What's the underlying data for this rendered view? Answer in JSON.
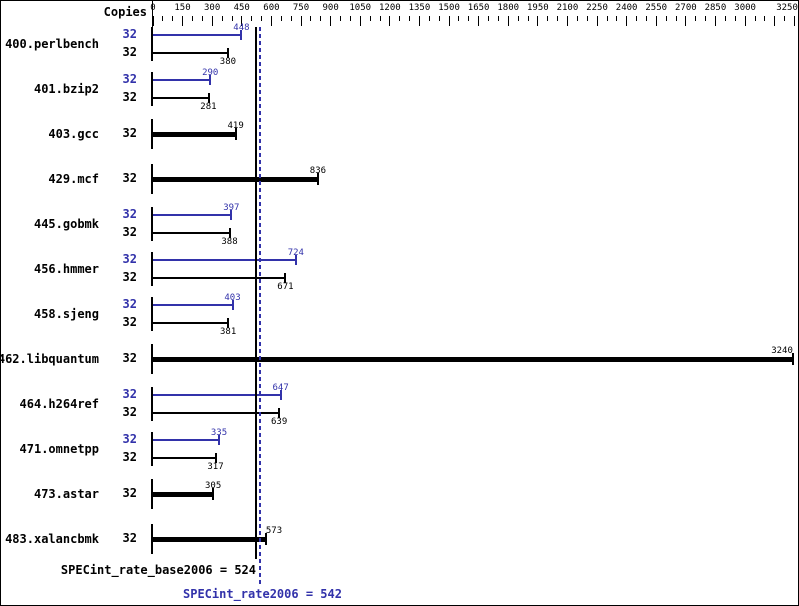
{
  "header": {
    "copies_label": "Copies"
  },
  "summary": {
    "base_text": "SPECint_rate_base2006 = 524",
    "peak_text": "SPECint_rate2006 = 542"
  },
  "colors": {
    "peak_blue": "#3232aa",
    "base_black": "#000000",
    "background": "#ffffff"
  },
  "chart_data": {
    "type": "bar",
    "orientation": "horizontal",
    "copies_header": "Copies",
    "value_axis": {
      "position": "top",
      "min": 0,
      "max": 3250,
      "major_tick_step": 150,
      "minor_tick_step": 50,
      "tick_labels": [
        "0",
        "150",
        "300",
        "450",
        "600",
        "750",
        "900",
        "1050",
        "1200",
        "1350",
        "1500",
        "1650",
        "1800",
        "1950",
        "2100",
        "2250",
        "2400",
        "2550",
        "2700",
        "2850",
        "3000",
        "3250"
      ]
    },
    "benchmarks": [
      {
        "name": "400.perlbench",
        "bars": [
          {
            "kind": "peak",
            "copies": 32,
            "value": 448
          },
          {
            "kind": "base",
            "copies": 32,
            "value": 380
          }
        ]
      },
      {
        "name": "401.bzip2",
        "bars": [
          {
            "kind": "peak",
            "copies": 32,
            "value": 290
          },
          {
            "kind": "base",
            "copies": 32,
            "value": 281
          }
        ]
      },
      {
        "name": "403.gcc",
        "bars": [
          {
            "kind": "single",
            "copies": 32,
            "value": 419
          }
        ]
      },
      {
        "name": "429.mcf",
        "bars": [
          {
            "kind": "single",
            "copies": 32,
            "value": 836
          }
        ]
      },
      {
        "name": "445.gobmk",
        "bars": [
          {
            "kind": "peak",
            "copies": 32,
            "value": 397
          },
          {
            "kind": "base",
            "copies": 32,
            "value": 388
          }
        ]
      },
      {
        "name": "456.hmmer",
        "bars": [
          {
            "kind": "peak",
            "copies": 32,
            "value": 724
          },
          {
            "kind": "base",
            "copies": 32,
            "value": 671
          }
        ]
      },
      {
        "name": "458.sjeng",
        "bars": [
          {
            "kind": "peak",
            "copies": 32,
            "value": 403
          },
          {
            "kind": "base",
            "copies": 32,
            "value": 381
          }
        ]
      },
      {
        "name": "462.libquantum",
        "bars": [
          {
            "kind": "single",
            "copies": 32,
            "value": 3240
          }
        ]
      },
      {
        "name": "464.h264ref",
        "bars": [
          {
            "kind": "peak",
            "copies": 32,
            "value": 647
          },
          {
            "kind": "base",
            "copies": 32,
            "value": 639
          }
        ]
      },
      {
        "name": "471.omnetpp",
        "bars": [
          {
            "kind": "peak",
            "copies": 32,
            "value": 335
          },
          {
            "kind": "base",
            "copies": 32,
            "value": 317
          }
        ]
      },
      {
        "name": "473.astar",
        "bars": [
          {
            "kind": "single",
            "copies": 32,
            "value": 305
          }
        ]
      },
      {
        "name": "483.xalancbmk",
        "bars": [
          {
            "kind": "single",
            "copies": 32,
            "value": 573
          }
        ]
      }
    ],
    "reference_lines": [
      {
        "name": "SPECint_rate_base2006",
        "value": 524,
        "style": "solid",
        "color": "#000000"
      },
      {
        "name": "SPECint_rate2006",
        "value": 542,
        "style": "dotted",
        "color": "#3232aa"
      }
    ]
  }
}
